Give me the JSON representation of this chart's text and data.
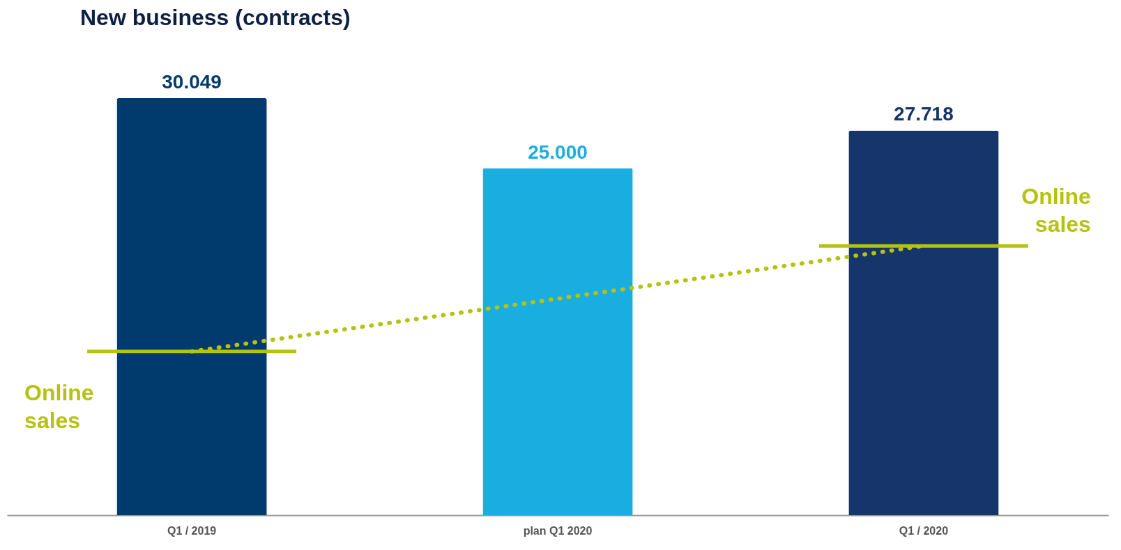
{
  "chart_data": {
    "type": "bar",
    "title": "New business (contracts)",
    "categories": [
      "Q1 / 2019",
      "plan Q1 2020",
      "Q1 / 2020"
    ],
    "data_labels": true,
    "series": [
      {
        "colors": [
          "#013a6c",
          "#1aade0",
          "#15356b"
        ],
        "values": [
          30049,
          25000,
          27718
        ],
        "value_labels": [
          "30.049",
          "25.000",
          "27.718"
        ]
      },
      {
        "type": "line",
        "line_style": "dotted",
        "name": "Online sales",
        "color": "#b5c20f",
        "values": [
          11800,
          null,
          19400
        ],
        "value_labels": [
          null,
          null,
          null
        ]
      }
    ],
    "grid": false
  }
}
